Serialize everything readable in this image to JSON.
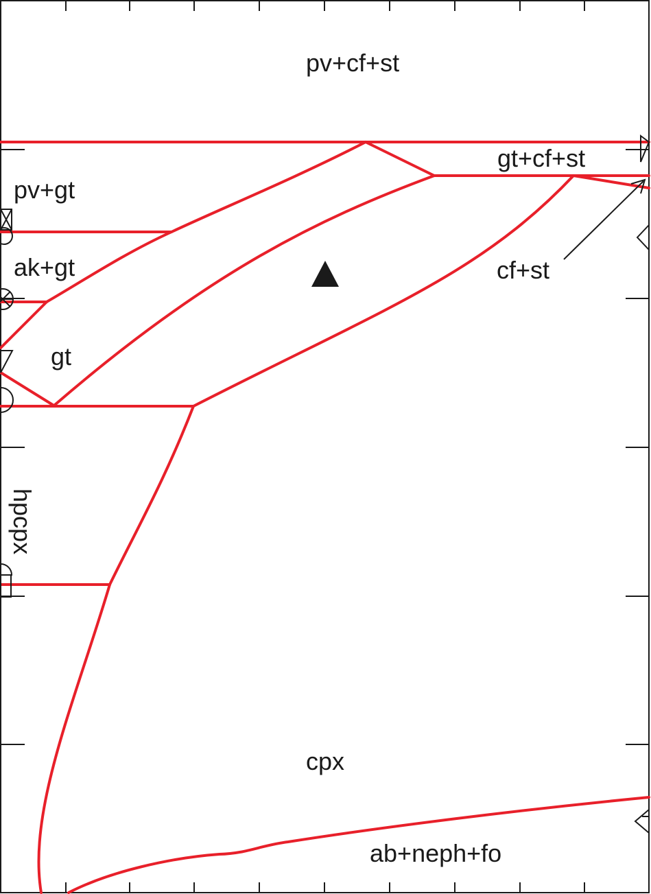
{
  "phase_fields": {
    "pv_cf_st": "pv+cf+st",
    "gt_cf_st": "gt+cf+st",
    "pv_gt": "pv+gt",
    "ak_gt": "ak+gt",
    "cf_st": "cf+st",
    "gt": "gt",
    "hpcpx": "hpcpx",
    "cpx": "cpx",
    "ab_neph_fo": "ab+neph+fo"
  },
  "colors": {
    "boundary": "#e8202a",
    "frame": "#1a1a1a",
    "marker": "#1a1a1a"
  },
  "markers": {
    "center": "filled-triangle",
    "left_axis": [
      "boxed-x-symbol",
      "circled-x-symbol",
      "down-triangle-symbol",
      "half-circle-symbol",
      "half-circle-symbol",
      "square-symbol"
    ],
    "right_axis": [
      "right-triangle-symbol",
      "left-diamond-symbol",
      "left-triangle-symbol"
    ]
  }
}
